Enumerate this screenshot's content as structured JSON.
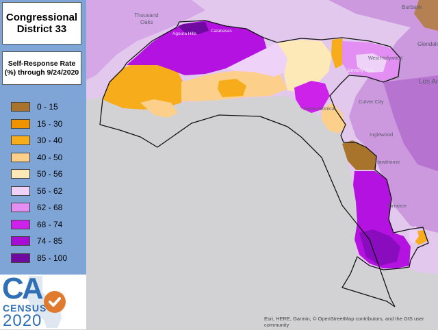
{
  "title": {
    "line1": "Congressional",
    "line2": "District 33"
  },
  "subtitle": {
    "line1": "Self-Response Rate",
    "line2": "(%) through 9/24/2020"
  },
  "legend": [
    {
      "label": "0 - 15",
      "color": "#a8732a"
    },
    {
      "label": "15 - 30",
      "color": "#ef9400"
    },
    {
      "label": "30 - 40",
      "color": "#f7ac1c"
    },
    {
      "label": "40 - 50",
      "color": "#fcd08b"
    },
    {
      "label": "50 - 56",
      "color": "#fde9b8"
    },
    {
      "label": "56 - 62",
      "color": "#efd2f7"
    },
    {
      "label": "62 - 68",
      "color": "#e28ef2"
    },
    {
      "label": "68 - 74",
      "color": "#cc22ea"
    },
    {
      "label": "74 - 85",
      "color": "#a60ed6"
    },
    {
      "label": "85 - 100",
      "color": "#6f0aa0"
    }
  ],
  "logo": {
    "ca": "CA",
    "census": "CENSUS",
    "year": "2020",
    "icon": "checkmark-icon"
  },
  "places": {
    "thousand_oaks": "Thousand",
    "oaks": "Oaks",
    "agoura_hills": "Agoura Hills",
    "calabasas": "Calabasas",
    "burbank": "Burbank",
    "glendale": "Glendale",
    "west_hollywood": "West Hollywood",
    "beverly_hills": "Beverly Hills",
    "los_angeles": "Los An",
    "culver_city": "Culver City",
    "santa_monica": "Santa Monica",
    "inglewood": "Inglewood",
    "hawthorne": "Hawthorne",
    "torrance": "Torrance"
  },
  "attribution": "Esri, HERE, Garmin, © OpenStreetMap contributors, and the GIS user community",
  "colors": {
    "ocean": "#d2d2d4",
    "land_base": "#e0c3ec",
    "panel": "#7fa5d6",
    "boundary": "#111111"
  }
}
